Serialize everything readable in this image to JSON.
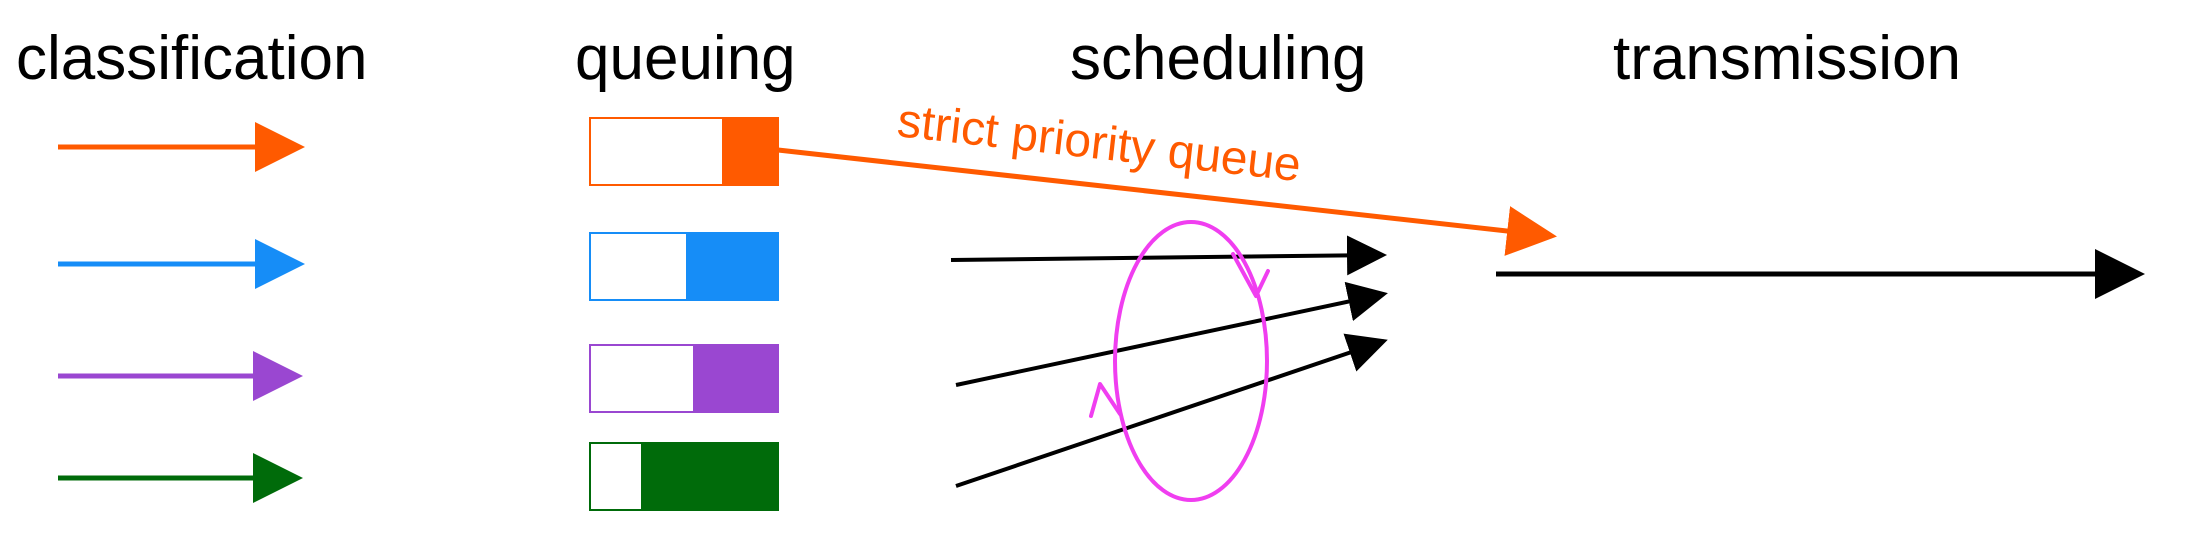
{
  "stages": {
    "classification": "classification",
    "queuing": "queuing",
    "scheduling": "scheduling",
    "transmission": "transmission"
  },
  "priority_label": "strict priority queue",
  "queues": [
    {
      "name": "orange",
      "color": "#ff5a00",
      "fill_fraction": 0.3
    },
    {
      "name": "blue",
      "color": "#168df7",
      "fill_fraction": 0.49
    },
    {
      "name": "purple",
      "color": "#9a47d1",
      "fill_fraction": 0.45
    },
    {
      "name": "green",
      "color": "#006b0a",
      "fill_fraction": 0.73
    }
  ],
  "colors": {
    "priority": "#ff5a00",
    "round_robin": "#f03ef0",
    "arrow": "#000000"
  }
}
